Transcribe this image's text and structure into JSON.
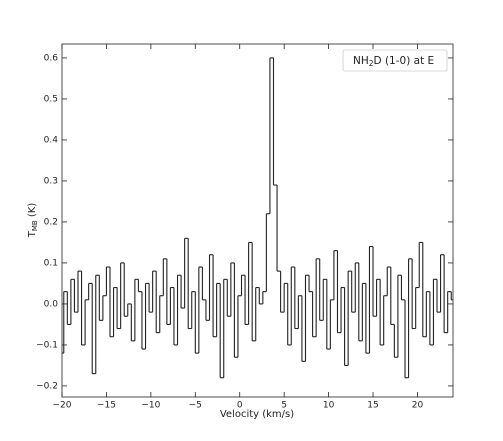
{
  "chart_data": {
    "type": "line",
    "drawstyle": "steps-mid",
    "color": "#222222",
    "legend": {
      "main": "NH",
      "sub": "2",
      "rest": "D (1-0) at E"
    },
    "legend_corner": "upper right",
    "xlabel": "Velocity (km/s)",
    "ylabel": {
      "main": "T",
      "sub": "MB",
      "rest": " (K)"
    },
    "xlim": [
      -20,
      24
    ],
    "ylim": [
      -0.227,
      0.634
    ],
    "xticks": [
      {
        "value": -20,
        "label": "−20"
      },
      {
        "value": -15,
        "label": "−15"
      },
      {
        "value": -10,
        "label": "−10"
      },
      {
        "value": -5,
        "label": "−5"
      },
      0,
      5,
      10,
      15,
      20
    ],
    "yticks": [
      {
        "value": -0.2,
        "label": "−0.2"
      },
      {
        "value": -0.1,
        "label": "−0.1"
      },
      {
        "value": 0,
        "label": "0.0"
      },
      0.1,
      0.2,
      0.3,
      0.4,
      0.5,
      0.6
    ],
    "x": [
      -20,
      -19.6,
      -19.2,
      -18.8,
      -18.4,
      -18,
      -17.6,
      -17.2,
      -16.8,
      -16.4,
      -16,
      -15.6,
      -15.2,
      -14.8,
      -14.4,
      -14,
      -13.6,
      -13.2,
      -12.8,
      -12.4,
      -12,
      -11.6,
      -11.2,
      -10.8,
      -10.4,
      -10,
      -9.6,
      -9.2,
      -8.8,
      -8.4,
      -8,
      -7.6,
      -7.2,
      -6.8,
      -6.4,
      -6,
      -5.6,
      -5.2,
      -4.8,
      -4.4,
      -4,
      -3.6,
      -3.2,
      -2.8,
      -2.4,
      -2,
      -1.6,
      -1.2,
      -0.8,
      -0.4,
      0,
      0.4,
      0.8,
      1.2,
      1.6,
      2,
      2.4,
      2.8,
      3.2,
      3.6,
      4,
      4.4,
      4.8,
      5.2,
      5.6,
      6,
      6.4,
      6.8,
      7.2,
      7.6,
      8,
      8.4,
      8.8,
      9.2,
      9.6,
      10,
      10.4,
      10.8,
      11.2,
      11.6,
      12,
      12.4,
      12.8,
      13.2,
      13.6,
      14,
      14.4,
      14.8,
      15.2,
      15.6,
      16,
      16.4,
      16.8,
      17.2,
      17.6,
      18,
      18.4,
      18.8,
      19.2,
      19.6,
      20,
      20.4,
      20.8,
      21.2,
      21.6,
      22,
      22.4,
      22.8,
      23.2,
      23.6,
      24
    ],
    "values": [
      -0.12,
      0.03,
      -0.05,
      0.06,
      -0.02,
      0.08,
      -0.1,
      0.01,
      0.05,
      -0.17,
      0.07,
      -0.04,
      0.02,
      0.09,
      -0.08,
      0.04,
      -0.06,
      0.1,
      -0.03,
      0.0,
      -0.09,
      0.06,
      0.03,
      -0.11,
      0.05,
      -0.02,
      0.08,
      -0.07,
      0.02,
      0.11,
      -0.05,
      0.04,
      -0.1,
      0.07,
      -0.01,
      0.16,
      -0.06,
      0.03,
      -0.12,
      0.09,
      0.01,
      -0.04,
      0.12,
      -0.08,
      0.05,
      -0.18,
      0.06,
      -0.03,
      0.1,
      -0.13,
      0.02,
      0.07,
      -0.05,
      0.15,
      -0.09,
      0.04,
      0.0,
      0.03,
      0.22,
      0.6,
      0.29,
      0.08,
      -0.02,
      0.05,
      -0.1,
      0.09,
      -0.06,
      0.02,
      -0.14,
      0.07,
      0.03,
      -0.08,
      0.11,
      -0.04,
      0.06,
      -0.11,
      0.01,
      0.13,
      -0.07,
      0.04,
      -0.15,
      0.08,
      -0.02,
      0.1,
      -0.09,
      0.05,
      -0.12,
      0.14,
      -0.03,
      0.06,
      -0.1,
      0.02,
      0.09,
      -0.05,
      -0.13,
      0.07,
      0.01,
      -0.18,
      0.11,
      -0.06,
      0.04,
      0.15,
      -0.08,
      0.03,
      -0.1,
      0.06,
      -0.02,
      0.12,
      -0.07,
      0.03,
      0.01
    ]
  }
}
